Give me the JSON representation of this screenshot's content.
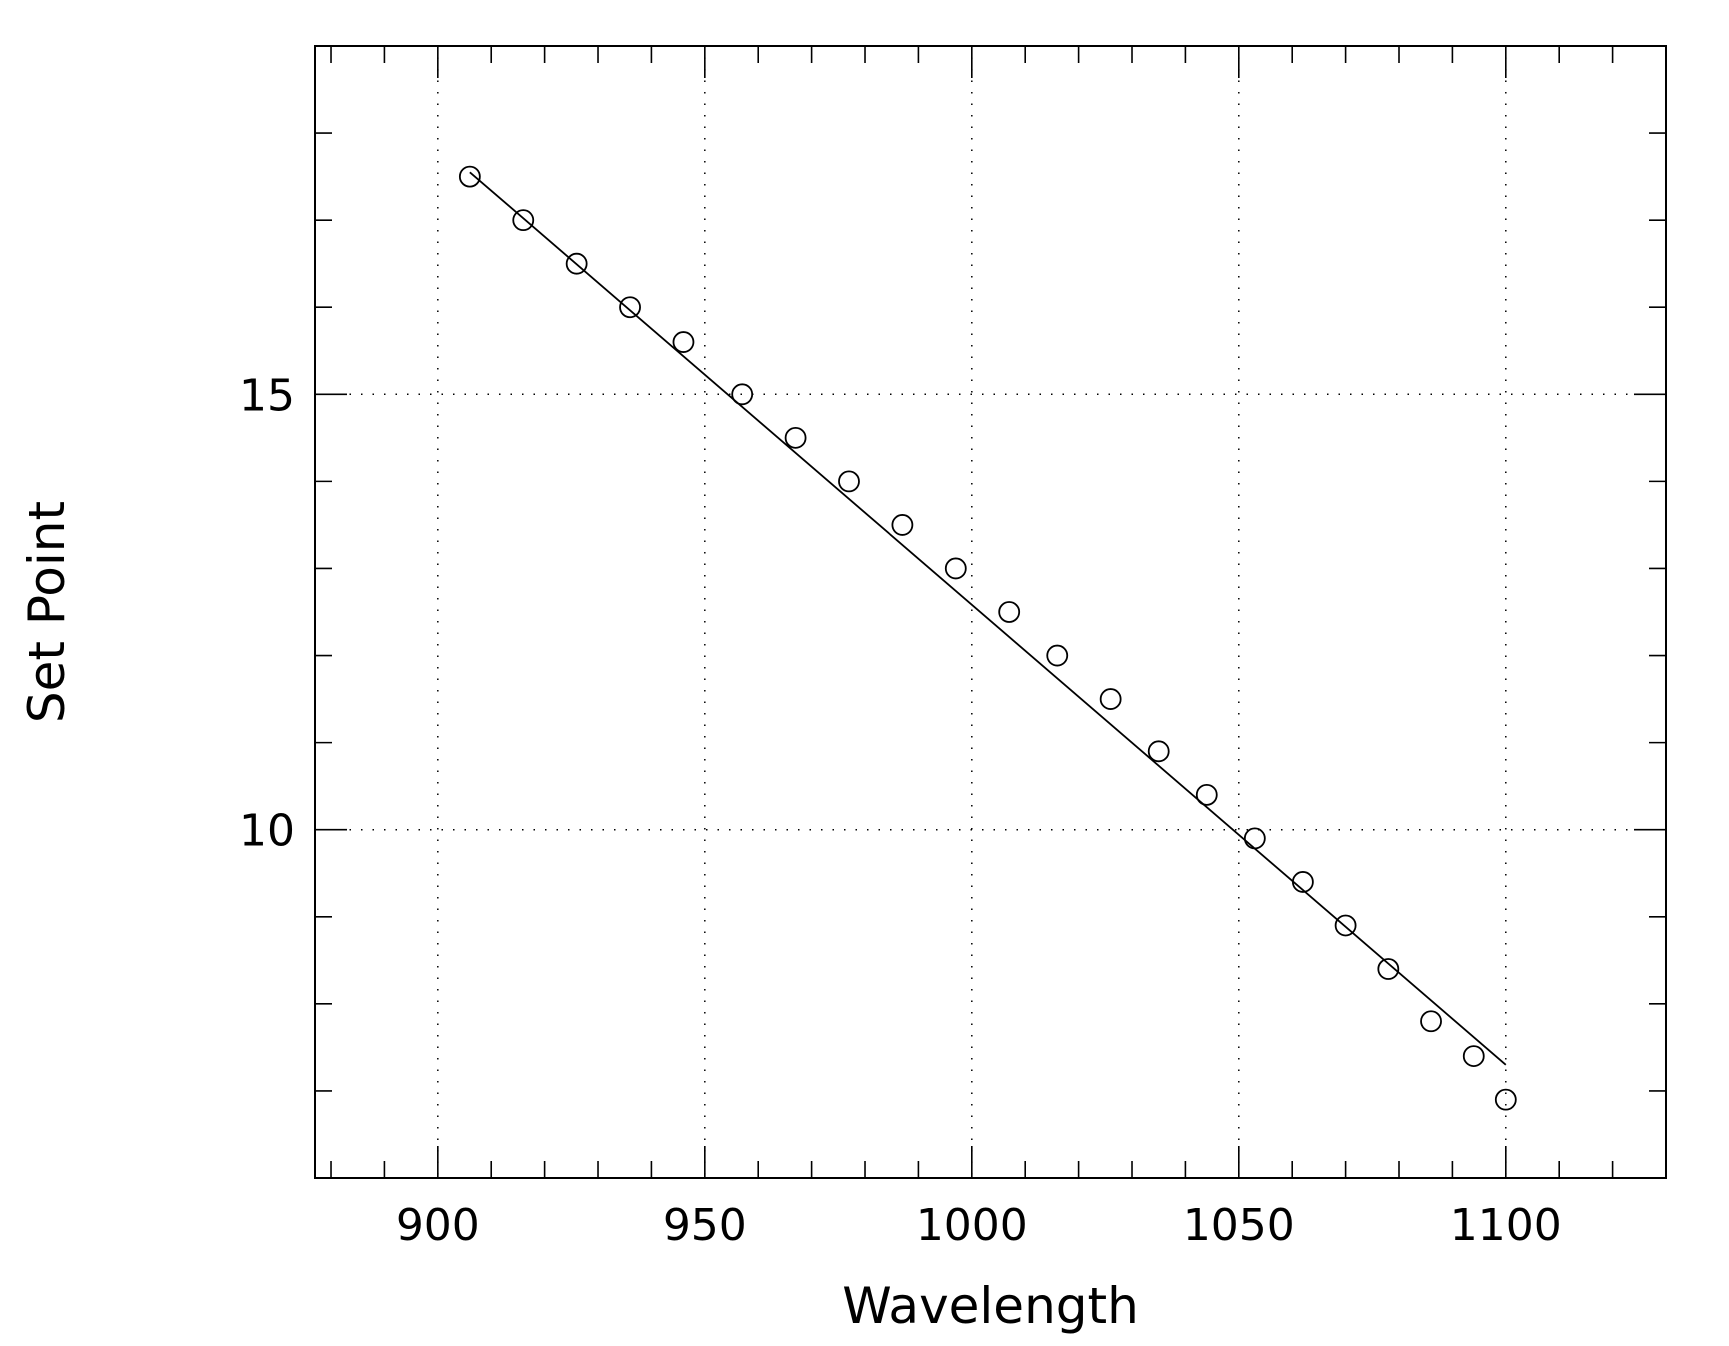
{
  "chart_data": {
    "type": "scatter",
    "xlabel": "Wavelength",
    "ylabel": "Set Point",
    "xlim": [
      877,
      1130
    ],
    "ylim": [
      6.0,
      19.0
    ],
    "x_ticks": [
      900,
      950,
      1000,
      1050,
      1100
    ],
    "x_tick_labels": [
      "900",
      "950",
      "1000",
      "1050",
      "1100"
    ],
    "x_minor_step": 10,
    "y_ticks": [
      10,
      15
    ],
    "y_tick_labels": [
      "10",
      "15"
    ],
    "y_minor_step": 1,
    "grid": "dotted at major ticks",
    "series": [
      {
        "kind": "points",
        "marker": "open-circle",
        "x": [
          906,
          916,
          926,
          936,
          946,
          957,
          967,
          977,
          987,
          997,
          1007,
          1016,
          1026,
          1035,
          1044,
          1053,
          1062,
          1070,
          1078,
          1086,
          1094,
          1100
        ],
        "y": [
          17.5,
          17.0,
          16.5,
          16.0,
          15.6,
          15.0,
          14.5,
          14.0,
          13.5,
          13.0,
          12.5,
          12.0,
          11.5,
          10.9,
          10.4,
          9.9,
          9.4,
          8.9,
          8.4,
          7.8,
          7.4,
          6.9
        ]
      },
      {
        "kind": "line",
        "x": [
          906,
          1100
        ],
        "y": [
          17.55,
          7.3
        ]
      }
    ],
    "colors": {
      "axes": "#000000",
      "marks": "#000000",
      "background": "#ffffff"
    }
  }
}
